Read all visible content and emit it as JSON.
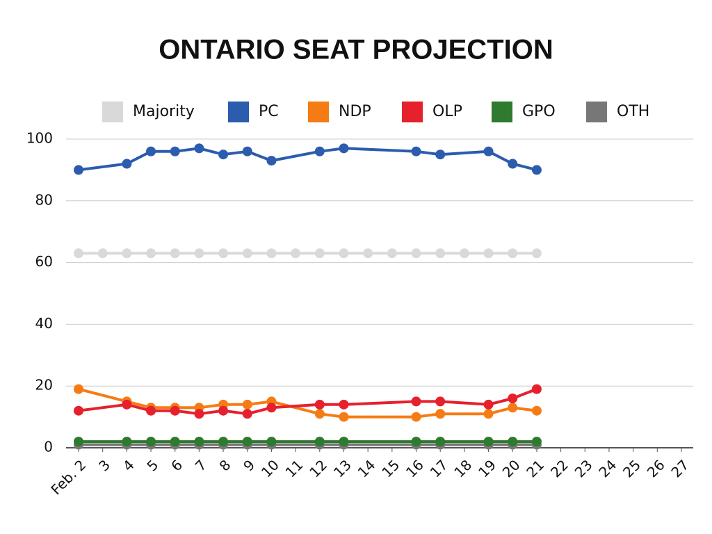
{
  "chart_data": {
    "type": "line",
    "title": "ONTARIO SEAT PROJECTION",
    "xlim": [
      2,
      27
    ],
    "xticks": [
      {
        "value": 2,
        "label": "Feb. 2"
      },
      3,
      4,
      5,
      6,
      7,
      8,
      9,
      10,
      11,
      12,
      13,
      14,
      15,
      16,
      17,
      18,
      19,
      20,
      21,
      22,
      23,
      24,
      25,
      26,
      27
    ],
    "ylim": [
      0,
      100
    ],
    "yticks": [
      0,
      20,
      40,
      60,
      80,
      100
    ],
    "grid": true,
    "legend": "top",
    "series": [
      {
        "name": "Majority",
        "color": "#d9d9d9",
        "x": [
          2,
          3,
          4,
          5,
          6,
          7,
          8,
          9,
          10,
          11,
          12,
          13,
          14,
          15,
          16,
          17,
          18,
          19,
          20,
          21
        ],
        "values": [
          63,
          63,
          63,
          63,
          63,
          63,
          63,
          63,
          63,
          63,
          63,
          63,
          63,
          63,
          63,
          63,
          63,
          63,
          63,
          63
        ]
      },
      {
        "name": "PC",
        "color": "#2b5cae",
        "x": [
          2,
          4,
          5,
          6,
          7,
          8,
          9,
          10,
          12,
          13,
          16,
          17,
          19,
          20,
          21
        ],
        "values": [
          90,
          92,
          96,
          96,
          97,
          95,
          96,
          93,
          96,
          97,
          96,
          95,
          96,
          92,
          90
        ]
      },
      {
        "name": "NDP",
        "color": "#f57c14",
        "x": [
          2,
          4,
          5,
          6,
          7,
          8,
          9,
          10,
          12,
          13,
          16,
          17,
          19,
          20,
          21
        ],
        "values": [
          19,
          15,
          13,
          13,
          13,
          14,
          14,
          15,
          11,
          10,
          10,
          11,
          11,
          13,
          12
        ]
      },
      {
        "name": "OLP",
        "color": "#e6202d",
        "x": [
          2,
          4,
          5,
          6,
          7,
          8,
          9,
          10,
          12,
          13,
          16,
          17,
          19,
          20,
          21
        ],
        "values": [
          12,
          14,
          12,
          12,
          11,
          12,
          11,
          13,
          14,
          14,
          15,
          15,
          14,
          16,
          19
        ]
      },
      {
        "name": "GPO",
        "color": "#2e7a2e",
        "x": [
          2,
          4,
          5,
          6,
          7,
          8,
          9,
          10,
          12,
          13,
          16,
          17,
          19,
          20,
          21
        ],
        "values": [
          2,
          2,
          2,
          2,
          2,
          2,
          2,
          2,
          2,
          2,
          2,
          2,
          2,
          2,
          2
        ]
      },
      {
        "name": "OTH",
        "color": "#777777",
        "x": [
          2,
          4,
          5,
          6,
          7,
          8,
          9,
          10,
          12,
          13,
          16,
          17,
          19,
          20,
          21
        ],
        "values": [
          1,
          1,
          1,
          1,
          1,
          1,
          1,
          1,
          1,
          1,
          1,
          1,
          1,
          1,
          1
        ]
      }
    ]
  }
}
